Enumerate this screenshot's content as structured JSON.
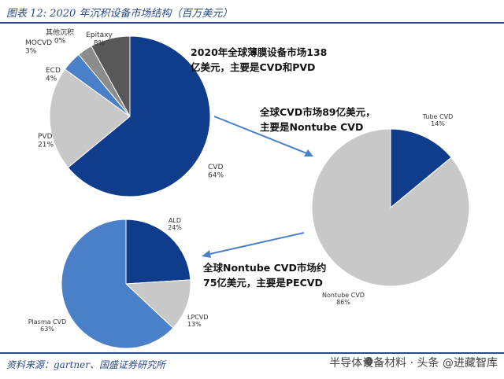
{
  "figure_title": "图表 12:  2020 年沉积设备市场结构（百万美元）",
  "source": "资料来源：gartner、国盛证券研究所",
  "watermark": "半导体设备材料 · 头条 @进藏智库",
  "colors": {
    "navy": "#103c8c",
    "light_gray": "#c8c8c8",
    "steel_blue": "#4a80c8",
    "mid_gray": "#8c8c8c",
    "dark_gray": "#585858",
    "arrow": "#4a80c8",
    "rule": "#2a4a8a"
  },
  "chart_data": [
    {
      "type": "pie",
      "title": "2020年全球薄膜设备市场138亿美元，主要是CVD和PVD",
      "slices": [
        {
          "name": "CVD",
          "value": 64,
          "color": "navy"
        },
        {
          "name": "PVD",
          "value": 21,
          "color": "light_gray"
        },
        {
          "name": "ECD",
          "value": 4,
          "color": "steel_blue"
        },
        {
          "name": "MOCVD",
          "value": 3,
          "color": "mid_gray"
        },
        {
          "name": "其他沉积",
          "value": 0,
          "color": "light_gray"
        },
        {
          "name": "Epitaxy",
          "value": 8,
          "color": "dark_gray"
        }
      ]
    },
    {
      "type": "pie",
      "title": "全球CVD市场89亿美元，主要是Nontube CVD",
      "slices": [
        {
          "name": "Tube CVD",
          "value": 14,
          "color": "navy"
        },
        {
          "name": "Nontube CVD",
          "value": 86,
          "color": "light_gray"
        }
      ]
    },
    {
      "type": "pie",
      "title": "全球Nontube CVD市场约75亿美元，主要是PECVD",
      "slices": [
        {
          "name": "ALD",
          "value": 24,
          "color": "navy"
        },
        {
          "name": "LPCVD",
          "value": 13,
          "color": "light_gray"
        },
        {
          "name": "Plasma CVD",
          "value": 63,
          "color": "steel_blue"
        }
      ]
    }
  ],
  "annotations": {
    "a1_line1": "2020年全球薄膜设备市场138",
    "a1_line2": "亿美元，主要是CVD和PVD",
    "a2_line1": "全球CVD市场89亿美元，",
    "a2_line2": "主要是Nontube CVD",
    "a3_line1": "全球Nontube CVD市场约",
    "a3_line2": "75亿美元，主要是PECVD"
  }
}
